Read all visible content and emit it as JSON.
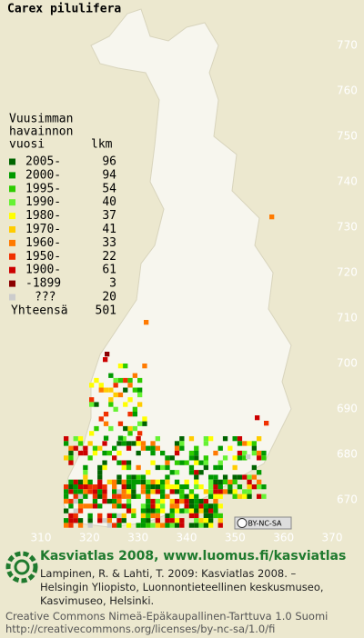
{
  "title": "Carex pilulifera",
  "legend": {
    "heading": [
      "Vuusimman",
      "havainnon",
      "vuosi"
    ],
    "count_heading": "lkm",
    "rows": [
      {
        "label": "2005-",
        "count": 96,
        "color": "#006400"
      },
      {
        "label": "2000-",
        "count": 94,
        "color": "#009a00"
      },
      {
        "label": "1995-",
        "count": 54,
        "color": "#2ecc00"
      },
      {
        "label": "1990-",
        "count": 40,
        "color": "#66f233"
      },
      {
        "label": "1980-",
        "count": 37,
        "color": "#ffff00"
      },
      {
        "label": "1970-",
        "count": 41,
        "color": "#ffcc00"
      },
      {
        "label": "1960-",
        "count": 33,
        "color": "#ff7a00"
      },
      {
        "label": "1950-",
        "count": 22,
        "color": "#f03000"
      },
      {
        "label": "1900-",
        "count": 61,
        "color": "#cc0000"
      },
      {
        "label": "-1899",
        "count": 3,
        "color": "#8b0000"
      },
      {
        "label": "???",
        "count": 20,
        "color": "#cccccc"
      }
    ],
    "total_label": "Yhteensä",
    "total": 501
  },
  "y_axis": [
    770,
    760,
    750,
    740,
    730,
    720,
    710,
    700,
    690,
    680,
    670
  ],
  "x_axis": [
    310,
    320,
    330,
    340,
    350,
    360,
    370
  ],
  "license_badge": "BY-NC-SA",
  "footer": {
    "heading": "Kasviatlas 2008, www.luomus.fi/kasviatlas",
    "citation": [
      "Lampinen, R. & Lahti, T. 2009: Kasviatlas 2008. –",
      "Helsingin Yliopisto, Luonnontieteellinen keskusmuseo,",
      "Kasvimuseo, Helsinki."
    ],
    "license": [
      "Creative Commons Nimeä-Epäkaupallinen-Tarttuva 1.0 Suomi",
      "http://creativecommons.org/licenses/by-nc-sa/1.0/fi"
    ]
  }
}
